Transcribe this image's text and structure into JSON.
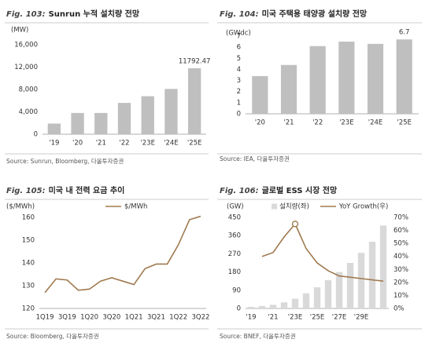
{
  "chart_data": [
    {
      "type": "bar",
      "figure": "Fig. 103:",
      "title": "Sunrun 누적 설치량 전망",
      "ylabel": "(MW)",
      "categories": [
        "'19",
        "'20",
        "'21",
        "'22",
        "'23E",
        "'24E",
        "'25E"
      ],
      "values": [
        1900,
        3800,
        3800,
        5600,
        6800,
        8100,
        11792.47
      ],
      "color": "#bfbfbf",
      "ylim": [
        0,
        16000
      ],
      "yticks": [
        0,
        {
          "value": 4000,
          "label": "4,000"
        },
        {
          "value": 8000,
          "label": "8,000"
        },
        {
          "value": 12000,
          "label": "12,000"
        },
        {
          "value": 16000,
          "label": "16,000"
        }
      ],
      "source": "Source: Sunrun, Bloomberg, 다올투자증권"
    },
    {
      "type": "bar",
      "figure": "Fig. 104:",
      "title": "미국 주택용 태양광 설치량 전망",
      "ylabel": "(GWdc)",
      "categories": [
        "'20",
        "'21",
        "'22",
        "'23E",
        "'24E",
        "'25E"
      ],
      "values": [
        3.4,
        4.4,
        6.1,
        6.5,
        6.3,
        6.7
      ],
      "color": "#bfbfbf",
      "ylim": [
        0,
        7
      ],
      "yticks": [
        0,
        1,
        2,
        3,
        4,
        5,
        6,
        7
      ],
      "source": "Source: IEA, 다올투자증권"
    },
    {
      "type": "line",
      "figure": "Fig. 105:",
      "title": "미국 내 전력 요금 추이",
      "ylabel": "($/MWh)",
      "categories": [
        "1Q19",
        null,
        "3Q19",
        null,
        "1Q20",
        null,
        "3Q20",
        null,
        "1Q21",
        null,
        "3Q21",
        null,
        "1Q22",
        null,
        "3Q22"
      ],
      "series": [
        {
          "name": "$/MWh",
          "color": "#a07a4f",
          "values": [
            127,
            133,
            132.5,
            128,
            128.5,
            132,
            133.5,
            132,
            130.5,
            137.5,
            139.5,
            139.5,
            148,
            159,
            160.5
          ]
        }
      ],
      "ylim": [
        120,
        160
      ],
      "yticks": [
        120,
        130,
        140,
        150,
        160
      ],
      "source": "Source: Bloomberg, 다올투자증권"
    },
    {
      "type": "combo",
      "figure": "Fig. 106:",
      "title": "글로벌 ESS 시장 전망",
      "ylabel": "(GW)",
      "categories": [
        "'19",
        null,
        "'21",
        null,
        "'23E",
        null,
        "'25E",
        null,
        "'27E",
        null,
        "'29E",
        null,
        null
      ],
      "series": [
        {
          "name": "설치량(좌)",
          "type": "bar",
          "color": "#d9d9d9",
          "values": [
            8,
            12,
            18,
            30,
            48,
            75,
            105,
            140,
            180,
            225,
            275,
            330,
            410
          ]
        },
        {
          "name": "YoY Growth(우)",
          "type": "line",
          "axis": "y2",
          "color": "#a07a4f",
          "values": [
            null,
            40,
            43,
            55,
            65,
            46,
            35,
            29,
            25,
            24,
            23,
            22,
            21
          ]
        }
      ],
      "ylim": [
        0,
        450
      ],
      "yticks": [
        0,
        90,
        180,
        270,
        360,
        450
      ],
      "y2lim": [
        0,
        70
      ],
      "y2ticks": [
        {
          "value": 0,
          "label": "0%"
        },
        {
          "value": 10,
          "label": "10%"
        },
        {
          "value": 20,
          "label": "20%"
        },
        {
          "value": 30,
          "label": "30%"
        },
        {
          "value": 40,
          "label": "40%"
        },
        {
          "value": 50,
          "label": "50%"
        },
        {
          "value": 60,
          "label": "60%"
        },
        {
          "value": 70,
          "label": "70%"
        }
      ],
      "source": "Source: BNEF, 다올투자증권"
    }
  ]
}
